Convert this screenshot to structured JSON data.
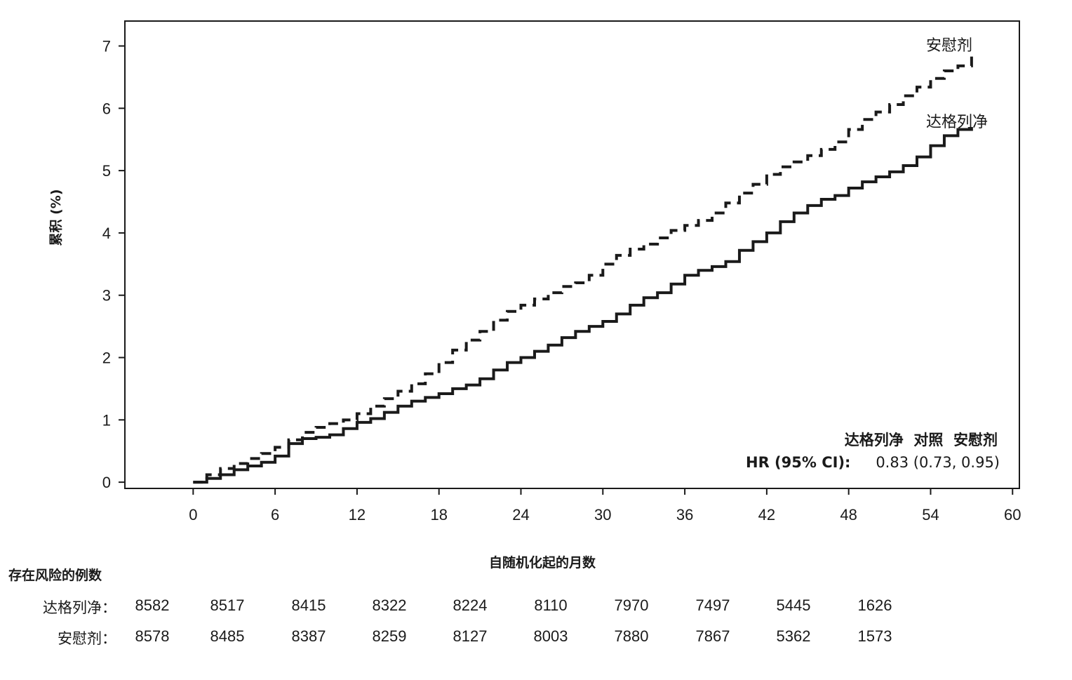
{
  "chart_data": {
    "type": "line",
    "step": true,
    "xlabel": "自随机化起的月数",
    "ylabel": "累积 (%)",
    "xlim": [
      -5,
      60.5
    ],
    "ylim": [
      -0.1,
      7.4
    ],
    "xticks": [
      0,
      6,
      12,
      18,
      24,
      30,
      36,
      42,
      48,
      54,
      60
    ],
    "yticks": [
      0,
      1,
      2,
      3,
      4,
      5,
      6,
      7
    ],
    "grid": false,
    "series": [
      {
        "name": "安慰剂",
        "line_style": "dashed",
        "x": [
          0,
          1,
          2,
          3,
          4,
          5,
          6,
          7,
          8,
          9,
          10,
          11,
          12,
          13,
          14,
          15,
          16,
          17,
          18,
          19,
          20,
          21,
          22,
          23,
          24,
          25,
          26,
          27,
          28,
          29,
          30,
          31,
          32,
          33,
          34,
          35,
          36,
          37,
          38,
          39,
          40,
          41,
          42,
          43,
          44,
          45,
          46,
          47,
          48,
          49,
          50,
          51,
          52,
          53,
          54,
          55,
          56,
          57
        ],
        "values": [
          0,
          0.12,
          0.22,
          0.3,
          0.38,
          0.46,
          0.56,
          0.68,
          0.8,
          0.88,
          0.94,
          1.0,
          1.1,
          1.22,
          1.34,
          1.46,
          1.58,
          1.74,
          1.92,
          2.12,
          2.28,
          2.42,
          2.6,
          2.74,
          2.84,
          2.94,
          3.04,
          3.14,
          3.2,
          3.32,
          3.5,
          3.64,
          3.74,
          3.82,
          3.92,
          4.04,
          4.12,
          4.2,
          4.32,
          4.48,
          4.64,
          4.78,
          4.94,
          5.06,
          5.14,
          5.24,
          5.34,
          5.46,
          5.66,
          5.82,
          5.94,
          6.06,
          6.2,
          6.34,
          6.48,
          6.6,
          6.68,
          6.9
        ]
      },
      {
        "name": "达格列净",
        "line_style": "solid",
        "x": [
          0,
          1,
          2,
          3,
          4,
          5,
          6,
          7,
          8,
          9,
          10,
          11,
          12,
          13,
          14,
          15,
          16,
          17,
          18,
          19,
          20,
          21,
          22,
          23,
          24,
          25,
          26,
          27,
          28,
          29,
          30,
          31,
          32,
          33,
          34,
          35,
          36,
          37,
          38,
          39,
          40,
          41,
          42,
          43,
          44,
          45,
          46,
          47,
          48,
          49,
          50,
          51,
          52,
          53,
          54,
          55,
          56,
          57
        ],
        "values": [
          0,
          0.06,
          0.12,
          0.2,
          0.26,
          0.32,
          0.42,
          0.62,
          0.7,
          0.72,
          0.76,
          0.86,
          0.96,
          1.02,
          1.12,
          1.22,
          1.3,
          1.36,
          1.42,
          1.5,
          1.56,
          1.66,
          1.8,
          1.92,
          2.0,
          2.1,
          2.2,
          2.32,
          2.42,
          2.5,
          2.58,
          2.7,
          2.84,
          2.96,
          3.04,
          3.18,
          3.32,
          3.4,
          3.46,
          3.54,
          3.72,
          3.86,
          4.0,
          4.18,
          4.32,
          4.44,
          4.54,
          4.6,
          4.72,
          4.82,
          4.9,
          4.98,
          5.08,
          5.22,
          5.4,
          5.56,
          5.66,
          5.7
        ]
      }
    ],
    "annotation": {
      "comparison": "达格列净  对照  安慰剂",
      "hr_label": "HR (95% CI):",
      "hr_value": "0.83 (0.73, 0.95)"
    },
    "risk_table": {
      "title": "存在风险的例数",
      "rows": [
        {
          "label": "达格列净：",
          "values": [
            "8582",
            "8517",
            "8415",
            "8322",
            "8224",
            "8110",
            "7970",
            "7497",
            "5445",
            "1626"
          ]
        },
        {
          "label": "安慰剂：",
          "values": [
            "8578",
            "8485",
            "8387",
            "8259",
            "8127",
            "8003",
            "7880",
            "7867",
            "5362",
            "1573"
          ]
        }
      ],
      "months": [
        0,
        6,
        12,
        18,
        24,
        30,
        36,
        42,
        48,
        54
      ]
    }
  }
}
